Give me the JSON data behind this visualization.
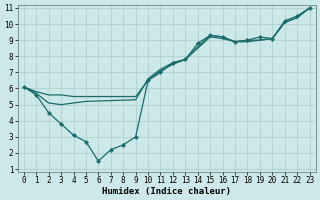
{
  "xlabel": "Humidex (Indice chaleur)",
  "xlim": [
    -0.5,
    23.5
  ],
  "ylim": [
    0.8,
    11.2
  ],
  "xticks": [
    0,
    1,
    2,
    3,
    4,
    5,
    6,
    7,
    8,
    9,
    10,
    11,
    12,
    13,
    14,
    15,
    16,
    17,
    18,
    19,
    20,
    21,
    22,
    23
  ],
  "yticks": [
    1,
    2,
    3,
    4,
    5,
    6,
    7,
    8,
    9,
    10,
    11
  ],
  "bg_color": "#cce8e8",
  "line_color": "#1a6b6b",
  "grid_color": "#aacccc",
  "lines": [
    {
      "x": [
        0,
        1,
        2,
        3,
        4,
        5,
        6,
        7,
        8,
        9,
        10,
        11,
        12,
        13,
        14,
        15,
        16,
        17,
        18,
        19,
        20,
        21,
        22,
        23
      ],
      "y": [
        6.1,
        5.6,
        4.5,
        3.8,
        3.1,
        2.7,
        1.5,
        2.2,
        2.5,
        3.0,
        6.5,
        7.0,
        7.6,
        7.8,
        8.8,
        9.3,
        9.2,
        8.9,
        9.0,
        9.2,
        9.1,
        10.2,
        10.5,
        11.0
      ],
      "has_markers": true
    },
    {
      "x": [
        0,
        1,
        2,
        3,
        4,
        5,
        6,
        7,
        8,
        9,
        10,
        11,
        12,
        13,
        14,
        15,
        16,
        17,
        18,
        19,
        20,
        21,
        22,
        23
      ],
      "y": [
        6.1,
        5.8,
        5.6,
        5.6,
        5.5,
        5.5,
        5.5,
        5.5,
        5.5,
        5.5,
        6.5,
        7.1,
        7.5,
        7.8,
        8.5,
        9.2,
        9.1,
        8.9,
        8.9,
        9.0,
        9.1,
        10.1,
        10.4,
        11.0
      ],
      "has_markers": false
    },
    {
      "x": [
        0,
        1,
        2,
        3,
        4,
        5,
        9,
        10,
        11,
        12,
        13,
        14,
        15,
        16,
        17,
        18,
        19,
        20,
        21,
        22,
        23
      ],
      "y": [
        6.1,
        5.7,
        5.1,
        5.0,
        5.1,
        5.2,
        5.3,
        6.6,
        7.2,
        7.6,
        7.8,
        8.6,
        9.3,
        9.2,
        8.9,
        9.0,
        9.0,
        9.1,
        10.1,
        10.4,
        11.0
      ],
      "has_markers": false
    }
  ],
  "tick_fontsize": 5.5,
  "label_fontsize": 6.5,
  "linewidth": 0.9,
  "markersize": 2.2
}
